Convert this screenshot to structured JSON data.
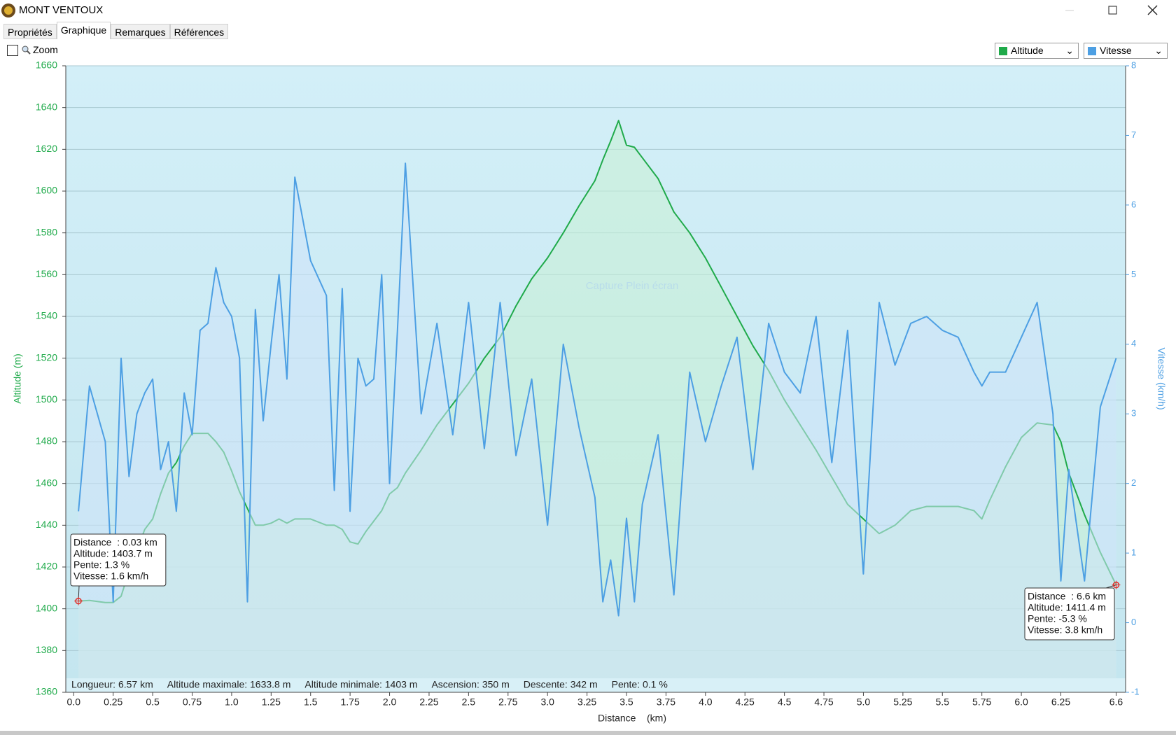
{
  "window": {
    "title": "MONT VENTOUX"
  },
  "tabs": [
    "Propriétés",
    "Graphique",
    "Remarques",
    "Références"
  ],
  "zoom": "Zoom",
  "chart_data": {
    "type": "line",
    "x_label": "Distance    (km)",
    "y_label": "Altitude (m)",
    "y2_label": "Vitesse (km/h)",
    "watermark": "Capture Plein écran",
    "xlim": [
      -0.05,
      6.66
    ],
    "xticks": [
      {
        "value": 0,
        "label": "0.0"
      },
      0.25,
      0.5,
      0.75,
      {
        "value": 1,
        "label": "1.0"
      },
      1.25,
      1.5,
      1.75,
      {
        "value": 2,
        "label": "2.0"
      },
      2.25,
      2.5,
      2.75,
      {
        "value": 3,
        "label": "3.0"
      },
      3.25,
      3.5,
      3.75,
      {
        "value": 4,
        "label": "4.0"
      },
      4.25,
      4.5,
      4.75,
      {
        "value": 5,
        "label": "5.0"
      },
      5.25,
      5.5,
      5.75,
      {
        "value": 6,
        "label": "6.0"
      },
      6.25,
      6.6
    ],
    "ylim": [
      1360,
      1660
    ],
    "yticks": [
      1360,
      1380,
      1400,
      1420,
      1440,
      1460,
      1480,
      1500,
      1520,
      1540,
      1560,
      1580,
      1600,
      1620,
      1640,
      1660
    ],
    "y2lim": [
      -1,
      8
    ],
    "y2ticks": [
      -1,
      0,
      1,
      2,
      3,
      4,
      5,
      6,
      7,
      8
    ],
    "grid": true,
    "x": [
      0.03,
      0.1,
      0.2,
      0.25,
      0.3,
      0.35,
      0.4,
      0.45,
      0.5,
      0.55,
      0.6,
      0.65,
      0.7,
      0.75,
      0.8,
      0.85,
      0.9,
      0.95,
      1.0,
      1.05,
      1.1,
      1.15,
      1.2,
      1.25,
      1.3,
      1.35,
      1.4,
      1.5,
      1.6,
      1.65,
      1.7,
      1.75,
      1.8,
      1.85,
      1.9,
      1.95,
      2.0,
      2.05,
      2.1,
      2.2,
      2.3,
      2.4,
      2.5,
      2.6,
      2.7,
      2.8,
      2.9,
      3.0,
      3.1,
      3.2,
      3.3,
      3.35,
      3.4,
      3.45,
      3.5,
      3.55,
      3.6,
      3.7,
      3.8,
      3.9,
      4.0,
      4.1,
      4.2,
      4.3,
      4.4,
      4.5,
      4.6,
      4.7,
      4.8,
      4.9,
      5.0,
      5.1,
      5.2,
      5.3,
      5.4,
      5.5,
      5.6,
      5.7,
      5.75,
      5.8,
      5.9,
      6.0,
      6.1,
      6.2,
      6.25,
      6.3,
      6.4,
      6.5,
      6.6
    ],
    "series": [
      {
        "name": "Altitude",
        "color": "#1faa4a",
        "fill": "#c8f0d4",
        "values": [
          1403.7,
          1404,
          1403,
          1403,
          1406,
          1418,
          1428,
          1438,
          1443,
          1455,
          1465,
          1470,
          1478,
          1484,
          1484,
          1484,
          1480,
          1475,
          1466,
          1456,
          1448,
          1440,
          1440,
          1441,
          1443,
          1441,
          1443,
          1443,
          1440,
          1440,
          1438,
          1432,
          1431,
          1437,
          1442,
          1447,
          1455,
          1458,
          1465,
          1476,
          1488,
          1498,
          1508,
          1520,
          1530,
          1545,
          1558,
          1568,
          1580,
          1593,
          1605,
          1615,
          1624,
          1633.8,
          1622,
          1621,
          1616,
          1606,
          1590,
          1580,
          1568,
          1554,
          1540,
          1526,
          1514,
          1500,
          1488,
          1476,
          1463,
          1450,
          1443,
          1436,
          1440,
          1447,
          1449,
          1449,
          1449,
          1447,
          1443,
          1452,
          1468,
          1482,
          1489,
          1488,
          1480,
          1465,
          1445,
          1427,
          1411.4
        ]
      },
      {
        "name": "Vitesse",
        "color": "#4d9fe3",
        "fill": "#cfe3fa",
        "axis": "y2",
        "values": [
          1.6,
          3.4,
          2.6,
          0.3,
          3.8,
          2.1,
          3.0,
          3.3,
          3.5,
          2.2,
          2.6,
          1.6,
          3.3,
          2.7,
          4.2,
          4.3,
          5.1,
          4.6,
          4.4,
          3.8,
          0.3,
          4.5,
          2.9,
          4.0,
          5.0,
          3.5,
          6.4,
          5.2,
          4.7,
          1.9,
          4.8,
          1.6,
          3.8,
          3.4,
          3.5,
          5.0,
          2.0,
          4.2,
          6.6,
          3.0,
          4.3,
          2.7,
          4.6,
          2.5,
          4.6,
          2.4,
          3.5,
          1.4,
          4.0,
          2.8,
          1.8,
          0.3,
          0.9,
          0.1,
          1.5,
          0.3,
          1.7,
          2.7,
          0.4,
          3.6,
          2.6,
          3.4,
          4.1,
          2.2,
          4.3,
          3.6,
          3.3,
          4.4,
          2.3,
          4.2,
          0.7,
          4.6,
          3.7,
          4.3,
          4.4,
          4.2,
          4.1,
          3.6,
          3.4,
          3.6,
          3.6,
          4.1,
          4.6,
          3.0,
          0.6,
          2.2,
          0.6,
          3.1,
          3.8
        ]
      }
    ],
    "stats": [
      "Longueur: 6.57 km",
      "Altitude maximale: 1633.8 m",
      "Altitude minimale: 1403 m",
      "Ascension: 350 m",
      "Descente: 342 m",
      "Pente: 0.1 %"
    ],
    "tooltips": [
      {
        "lines": [
          "Distance  : 0.03 km",
          "Altitude: 1403.7 m",
          "Pente: 1.3 %",
          "Vitesse: 1.6 km/h"
        ]
      },
      {
        "lines": [
          "Distance  : 6.6 km",
          "Altitude: 1411.4 m",
          "Pente: -5.3 %",
          "Vitesse: 3.8 km/h"
        ]
      }
    ]
  }
}
